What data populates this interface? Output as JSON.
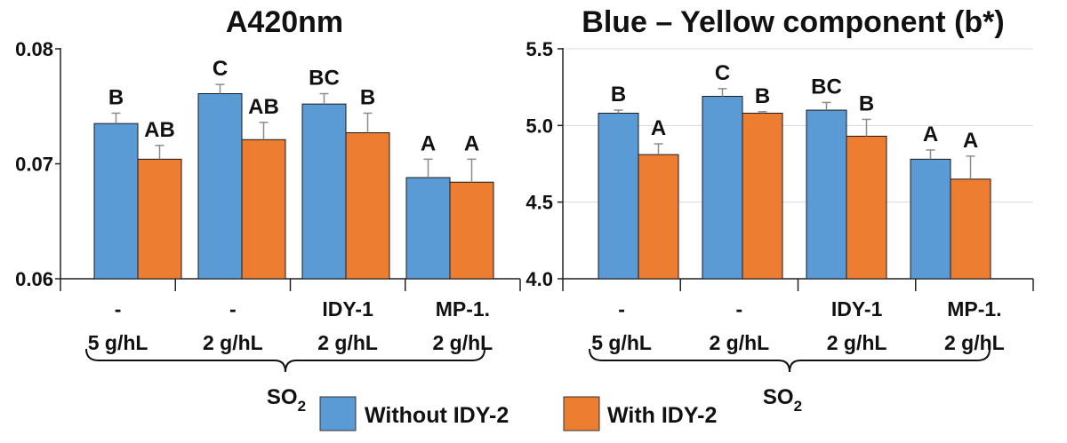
{
  "colors": {
    "without": "#5B9BD5",
    "with": "#ED7D31",
    "axis": "#222222",
    "grid": "#D9D9D9"
  },
  "legend": {
    "without_label": "Without IDY-2",
    "with_label": "With IDY-2"
  },
  "chart_data": [
    {
      "type": "bar",
      "title": "A420nm",
      "ylim": [
        0.06,
        0.08
      ],
      "yticks": [
        "0.06",
        "0.07",
        "0.08"
      ],
      "ytick_values": [
        0.06,
        0.07,
        0.08
      ],
      "grid": false,
      "categories": [
        {
          "line1": "-",
          "line2": "5 g/hL"
        },
        {
          "line1": "-",
          "line2": "2 g/hL"
        },
        {
          "line1": "IDY-1",
          "line2": "2 g/hL"
        },
        {
          "line1": "MP-1.",
          "line2": "2 g/hL"
        }
      ],
      "group_label": "SO",
      "group_label_sub": "2",
      "series": [
        {
          "name": "Without IDY-2",
          "values": [
            0.0735,
            0.0761,
            0.0752,
            0.0688
          ],
          "errors": [
            0.0009,
            0.0008,
            0.0009,
            0.0016
          ],
          "labels": [
            "B",
            "C",
            "BC",
            "A"
          ]
        },
        {
          "name": "With IDY-2",
          "values": [
            0.0704,
            0.0721,
            0.0727,
            0.0684
          ],
          "errors": [
            0.0012,
            0.0015,
            0.0017,
            0.002
          ],
          "labels": [
            "AB",
            "AB",
            "B",
            "A"
          ]
        }
      ]
    },
    {
      "type": "bar",
      "title": "Blue – Yellow component (b*)",
      "ylim": [
        4.0,
        5.5
      ],
      "yticks": [
        "4.0",
        "4.5",
        "5.0",
        "5.5"
      ],
      "ytick_values": [
        4.0,
        4.5,
        5.0,
        5.5
      ],
      "grid": true,
      "categories": [
        {
          "line1": "-",
          "line2": "5 g/hL"
        },
        {
          "line1": "-",
          "line2": "2 g/hL"
        },
        {
          "line1": "IDY-1",
          "line2": "2 g/hL"
        },
        {
          "line1": "MP-1.",
          "line2": "2 g/hL"
        }
      ],
      "group_label": "SO",
      "group_label_sub": "2",
      "series": [
        {
          "name": "Without IDY-2",
          "values": [
            5.08,
            5.19,
            5.1,
            4.78
          ],
          "errors": [
            0.02,
            0.05,
            0.05,
            0.06
          ],
          "labels": [
            "B",
            "C",
            "BC",
            "A"
          ]
        },
        {
          "name": "With IDY-2",
          "values": [
            4.81,
            5.08,
            4.93,
            4.65
          ],
          "errors": [
            0.07,
            0.01,
            0.11,
            0.15
          ],
          "labels": [
            "A",
            "B",
            "B",
            "A"
          ]
        }
      ]
    }
  ]
}
